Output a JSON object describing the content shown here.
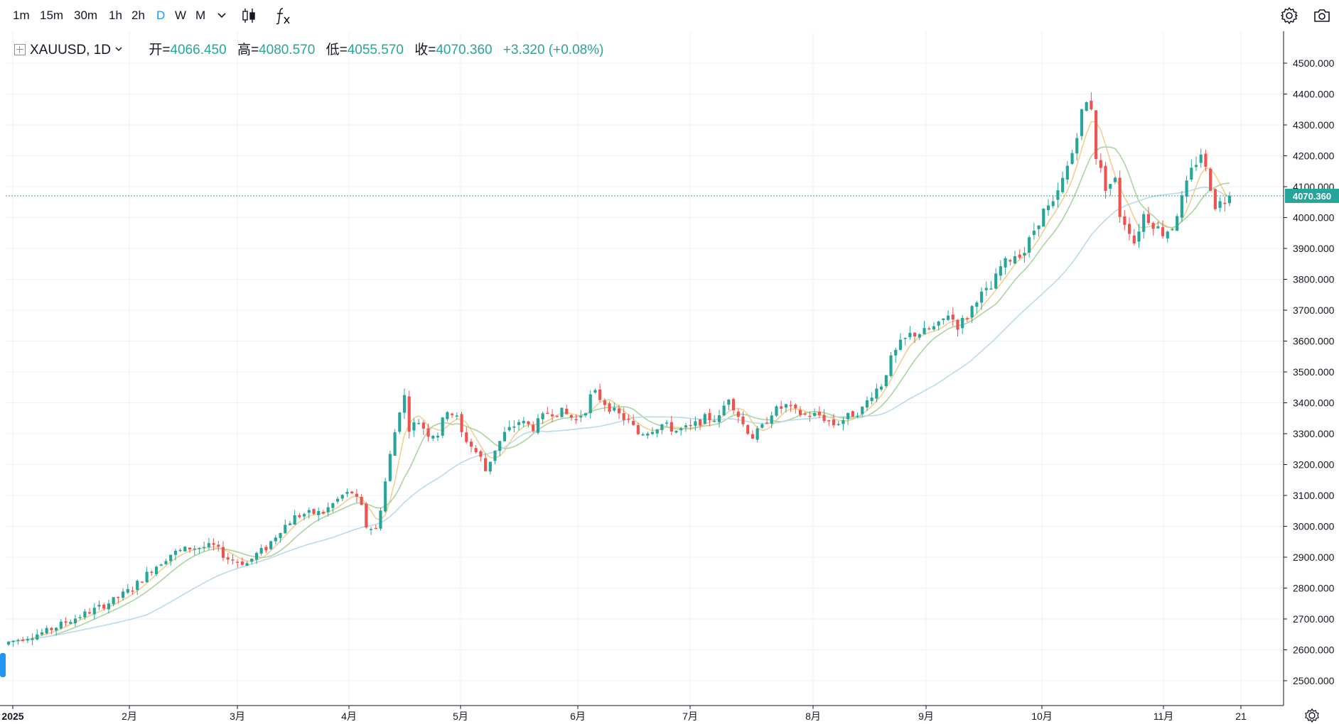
{
  "toolbar": {
    "intervals": [
      "1m",
      "15m",
      "30m",
      "1h",
      "2h",
      "D",
      "W",
      "M"
    ],
    "active_interval": "D",
    "icons": [
      "chevron-down-icon",
      "candlestick-icon",
      "indicators-fx-icon",
      "settings-gear-icon",
      "camera-icon"
    ]
  },
  "legend": {
    "symbol": "XAUUSD, 1D",
    "open_label": "开=",
    "open": "4066.450",
    "high_label": "高=",
    "high": "4080.570",
    "low_label": "低=",
    "low": "4055.570",
    "close_label": "收=",
    "close": "4070.360",
    "change": "+3.320 (+0.08%)"
  },
  "colors": {
    "up": "#26a69a",
    "down": "#ef5350",
    "grid": "#eef0f3",
    "ma_short": "#f2cf8e",
    "ma_mid": "#a8d5a0",
    "ma_long": "#b8dbea",
    "price_line": "#26a69a"
  },
  "chart_data": {
    "type": "candlestick",
    "title": "XAUUSD, 1D",
    "ylim": [
      2450,
      4560
    ],
    "y_ticks": [
      "4500.000",
      "4400.000",
      "4300.000",
      "4200.000",
      "4100.000",
      "4000.000",
      "3900.000",
      "3800.000",
      "3700.000",
      "3600.000",
      "3500.000",
      "3400.000",
      "3300.000",
      "3200.000",
      "3100.000",
      "3000.000",
      "2900.000",
      "2800.000",
      "2700.000",
      "2600.000",
      "2500.000"
    ],
    "x_ticks": [
      "2025",
      "2月",
      "3月",
      "4月",
      "5月",
      "6月",
      "7月",
      "8月",
      "9月",
      "10月",
      "11月",
      "21"
    ],
    "last_price": "4070.360",
    "anchors": [
      [
        0,
        2625
      ],
      [
        8,
        2660
      ],
      [
        12,
        2690
      ],
      [
        18,
        2730
      ],
      [
        22,
        2760
      ],
      [
        26,
        2800
      ],
      [
        30,
        2860
      ],
      [
        34,
        2910
      ],
      [
        38,
        2930
      ],
      [
        43,
        2935
      ],
      [
        46,
        2895
      ],
      [
        50,
        2880
      ],
      [
        52,
        2910
      ],
      [
        54,
        2930
      ],
      [
        57,
        2990
      ],
      [
        60,
        3030
      ],
      [
        62,
        3040
      ],
      [
        66,
        3045
      ],
      [
        70,
        3100
      ],
      [
        72,
        3110
      ],
      [
        74,
        3060
      ],
      [
        75,
        3000
      ],
      [
        77,
        2990
      ],
      [
        78,
        3060
      ],
      [
        80,
        3230
      ],
      [
        82,
        3380
      ],
      [
        83,
        3420
      ],
      [
        84,
        3320
      ],
      [
        86,
        3340
      ],
      [
        88,
        3300
      ],
      [
        90,
        3300
      ],
      [
        92,
        3380
      ],
      [
        94,
        3350
      ],
      [
        95,
        3300
      ],
      [
        97,
        3260
      ],
      [
        99,
        3220
      ],
      [
        100,
        3180
      ],
      [
        102,
        3250
      ],
      [
        104,
        3300
      ],
      [
        107,
        3340
      ],
      [
        110,
        3320
      ],
      [
        113,
        3370
      ],
      [
        116,
        3370
      ],
      [
        119,
        3345
      ],
      [
        121,
        3380
      ],
      [
        122,
        3420
      ],
      [
        123,
        3430
      ],
      [
        125,
        3400
      ],
      [
        127,
        3370
      ],
      [
        130,
        3340
      ],
      [
        132,
        3300
      ],
      [
        134,
        3310
      ],
      [
        137,
        3330
      ],
      [
        140,
        3310
      ],
      [
        143,
        3320
      ],
      [
        146,
        3350
      ],
      [
        149,
        3350
      ],
      [
        150,
        3390
      ],
      [
        151,
        3420
      ],
      [
        152,
        3390
      ],
      [
        154,
        3330
      ],
      [
        156,
        3290
      ],
      [
        158,
        3320
      ],
      [
        160,
        3370
      ],
      [
        163,
        3390
      ],
      [
        165,
        3370
      ],
      [
        167,
        3360
      ],
      [
        170,
        3360
      ],
      [
        173,
        3330
      ],
      [
        176,
        3355
      ],
      [
        179,
        3380
      ],
      [
        181,
        3430
      ],
      [
        183,
        3460
      ],
      [
        185,
        3540
      ],
      [
        187,
        3590
      ],
      [
        189,
        3620
      ],
      [
        192,
        3630
      ],
      [
        195,
        3650
      ],
      [
        197,
        3690
      ],
      [
        199,
        3650
      ],
      [
        201,
        3680
      ],
      [
        203,
        3740
      ],
      [
        206,
        3770
      ],
      [
        208,
        3840
      ],
      [
        211,
        3880
      ],
      [
        213,
        3890
      ],
      [
        215,
        3960
      ],
      [
        217,
        4020
      ],
      [
        219,
        4040
      ],
      [
        221,
        4120
      ],
      [
        223,
        4210
      ],
      [
        225,
        4340
      ],
      [
        226,
        4370
      ],
      [
        227,
        4360
      ],
      [
        228,
        4200
      ],
      [
        230,
        4100
      ],
      [
        232,
        4120
      ],
      [
        233,
        4010
      ],
      [
        235,
        3960
      ],
      [
        236,
        3920
      ],
      [
        238,
        4010
      ],
      [
        240,
        3980
      ],
      [
        242,
        3950
      ],
      [
        244,
        3970
      ],
      [
        246,
        4060
      ],
      [
        248,
        4150
      ],
      [
        250,
        4210
      ],
      [
        252,
        4100
      ],
      [
        253,
        4040
      ],
      [
        255,
        4055
      ],
      [
        256,
        4070
      ]
    ]
  }
}
